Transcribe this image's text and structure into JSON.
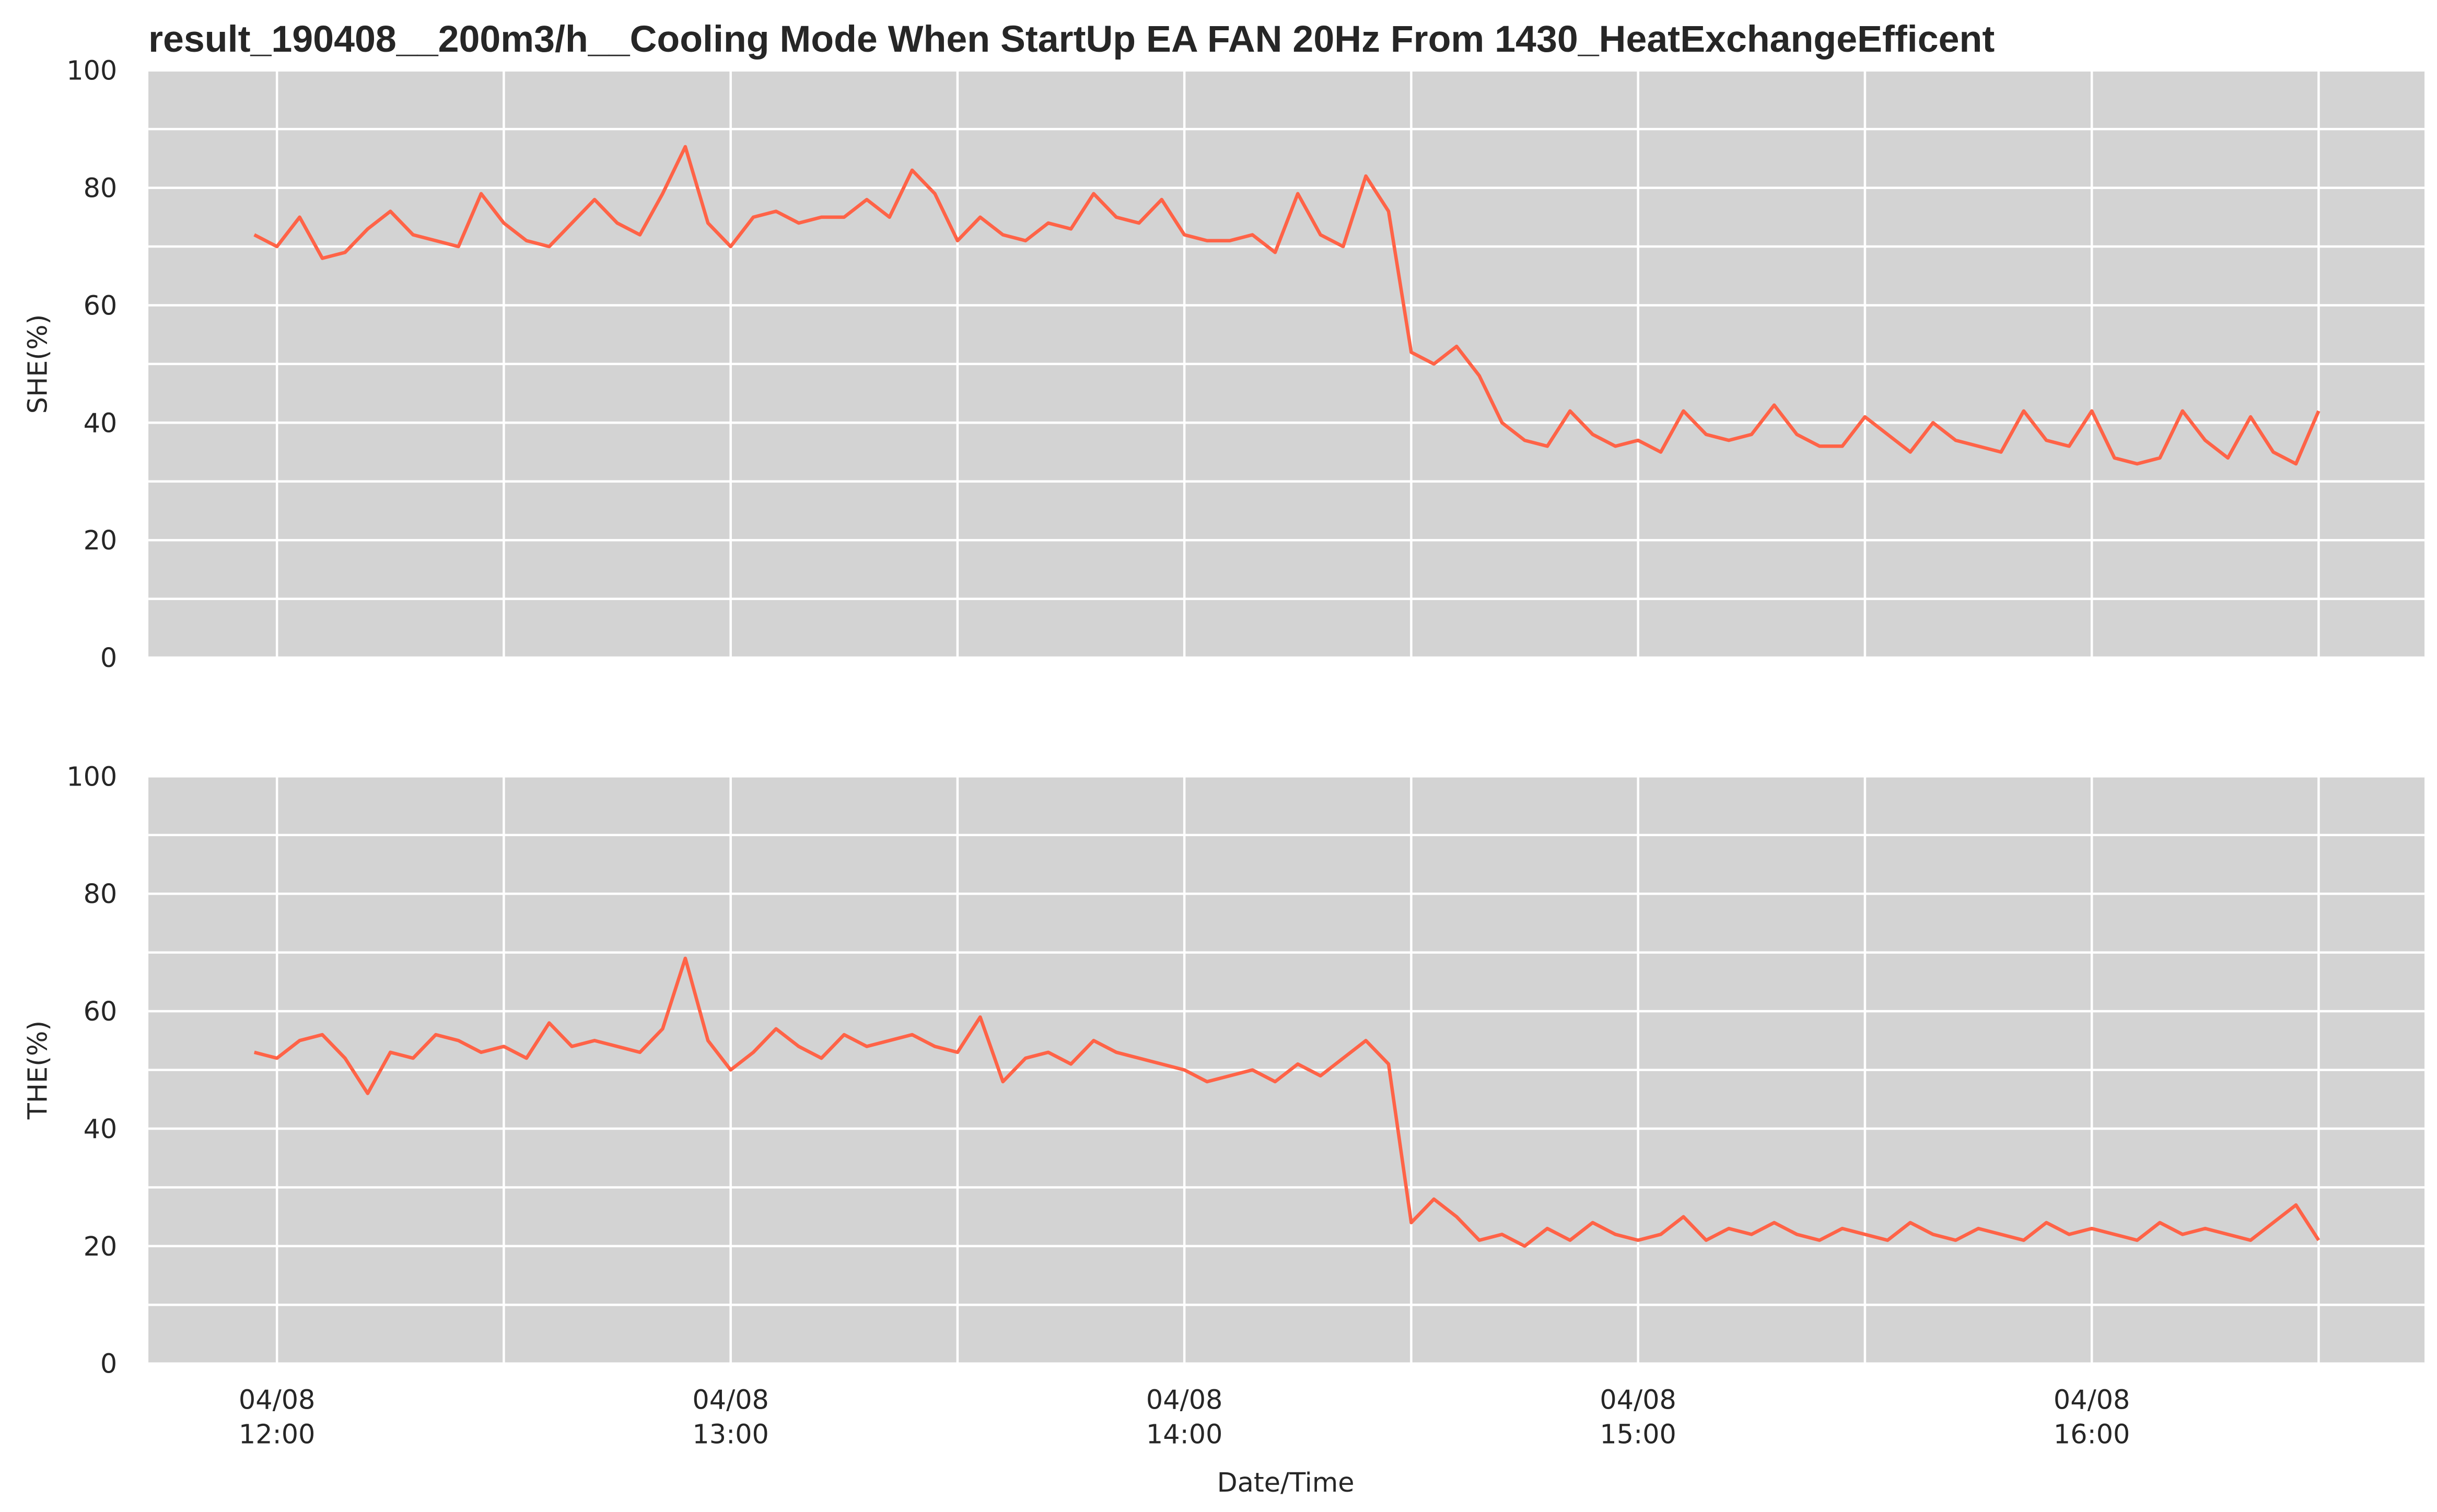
{
  "chart_data": {
    "type": "line",
    "title": "result_190408__200m3/h__Cooling Mode When StartUp EA FAN 20Hz From 1430_HeatExchangeEfficent",
    "xlabel": "Date/Time",
    "xlim": [
      "04/08 11:43",
      "04/08 16:44"
    ],
    "xticks": [
      "04/08 12:00",
      "04/08 13:00",
      "04/08 14:00",
      "04/08 15:00",
      "04/08 16:00"
    ],
    "xminor": [
      "04/08 12:30",
      "04/08 13:30",
      "04/08 14:30",
      "04/08 15:30",
      "04/08 16:30"
    ],
    "grid": true,
    "x": [
      "04/08 11:57",
      "04/08 12:00",
      "04/08 12:03",
      "04/08 12:06",
      "04/08 12:09",
      "04/08 12:12",
      "04/08 12:15",
      "04/08 12:18",
      "04/08 12:21",
      "04/08 12:24",
      "04/08 12:27",
      "04/08 12:30",
      "04/08 12:33",
      "04/08 12:36",
      "04/08 12:39",
      "04/08 12:42",
      "04/08 12:45",
      "04/08 12:48",
      "04/08 12:51",
      "04/08 12:54",
      "04/08 12:57",
      "04/08 13:00",
      "04/08 13:03",
      "04/08 13:06",
      "04/08 13:09",
      "04/08 13:12",
      "04/08 13:15",
      "04/08 13:18",
      "04/08 13:21",
      "04/08 13:24",
      "04/08 13:27",
      "04/08 13:30",
      "04/08 13:33",
      "04/08 13:36",
      "04/08 13:39",
      "04/08 13:42",
      "04/08 13:45",
      "04/08 13:48",
      "04/08 13:51",
      "04/08 13:54",
      "04/08 13:57",
      "04/08 14:00",
      "04/08 14:03",
      "04/08 14:06",
      "04/08 14:09",
      "04/08 14:12",
      "04/08 14:15",
      "04/08 14:18",
      "04/08 14:21",
      "04/08 14:24",
      "04/08 14:27",
      "04/08 14:30",
      "04/08 14:33",
      "04/08 14:36",
      "04/08 14:39",
      "04/08 14:42",
      "04/08 14:45",
      "04/08 14:48",
      "04/08 14:51",
      "04/08 14:54",
      "04/08 14:57",
      "04/08 15:00",
      "04/08 15:03",
      "04/08 15:06",
      "04/08 15:09",
      "04/08 15:12",
      "04/08 15:15",
      "04/08 15:18",
      "04/08 15:21",
      "04/08 15:24",
      "04/08 15:27",
      "04/08 15:30",
      "04/08 15:33",
      "04/08 15:36",
      "04/08 15:39",
      "04/08 15:42",
      "04/08 15:45",
      "04/08 15:48",
      "04/08 15:51",
      "04/08 15:54",
      "04/08 15:57",
      "04/08 16:00",
      "04/08 16:03",
      "04/08 16:06",
      "04/08 16:09",
      "04/08 16:12",
      "04/08 16:15",
      "04/08 16:18",
      "04/08 16:21",
      "04/08 16:24",
      "04/08 16:27",
      "04/08 16:30"
    ],
    "panels": [
      {
        "ylabel": "SHE(%)",
        "ylim": [
          0,
          100
        ],
        "yticks": [
          0,
          20,
          40,
          60,
          80,
          100
        ],
        "yminor": [
          10,
          30,
          50,
          70,
          90
        ],
        "series": [
          {
            "color": "#ff6347",
            "values": [
              72,
              70,
              75,
              68,
              69,
              73,
              76,
              72,
              71,
              70,
              79,
              74,
              71,
              70,
              74,
              78,
              74,
              72,
              79,
              87,
              74,
              70,
              75,
              76,
              74,
              75,
              75,
              78,
              75,
              83,
              79,
              71,
              75,
              72,
              71,
              74,
              73,
              79,
              75,
              74,
              78,
              72,
              71,
              71,
              72,
              69,
              79,
              72,
              70,
              82,
              76,
              52,
              50,
              53,
              48,
              40,
              37,
              36,
              42,
              38,
              36,
              37,
              35,
              42,
              38,
              37,
              38,
              43,
              38,
              36,
              36,
              41,
              38,
              35,
              40,
              37,
              36,
              35,
              42,
              37,
              36,
              42,
              34,
              33,
              34,
              42,
              37,
              34,
              41,
              35,
              33,
              42
            ]
          }
        ]
      },
      {
        "ylabel": "THE(%)",
        "ylim": [
          0,
          100
        ],
        "yticks": [
          0,
          20,
          40,
          60,
          80,
          100
        ],
        "yminor": [
          10,
          30,
          50,
          70,
          90
        ],
        "series": [
          {
            "color": "#ff6347",
            "values": [
              53,
              52,
              55,
              56,
              52,
              46,
              53,
              52,
              56,
              55,
              53,
              54,
              52,
              58,
              54,
              55,
              54,
              53,
              57,
              69,
              55,
              50,
              53,
              57,
              54,
              52,
              56,
              54,
              55,
              56,
              54,
              53,
              59,
              48,
              52,
              53,
              51,
              55,
              53,
              52,
              51,
              50,
              48,
              49,
              50,
              48,
              51,
              49,
              52,
              55,
              51,
              24,
              28,
              25,
              21,
              22,
              20,
              23,
              21,
              24,
              22,
              21,
              22,
              25,
              21,
              23,
              22,
              24,
              22,
              21,
              23,
              22,
              21,
              24,
              22,
              21,
              23,
              22,
              21,
              24,
              22,
              23,
              22,
              21,
              24,
              22,
              23,
              22,
              21,
              24,
              27,
              21
            ]
          }
        ]
      }
    ]
  }
}
